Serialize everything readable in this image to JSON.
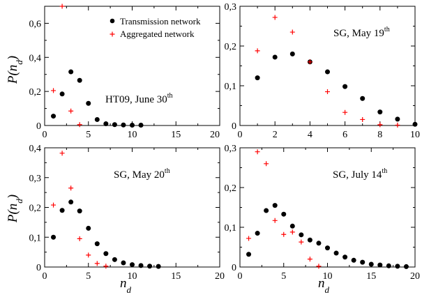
{
  "figure": {
    "ylabel_main": "P(n",
    "ylabel_sub": "d",
    "ylabel_close": ")",
    "xlabel_main": "n",
    "xlabel_sub": "d"
  },
  "legend": {
    "transmission": "Transmission network",
    "aggregated": "Aggregated network"
  },
  "colors": {
    "transmission": "#000000",
    "aggregated": "#ff0000"
  },
  "chart_data": [
    {
      "type": "scatter",
      "annotation": {
        "main": "HT09, June 30",
        "sup": "th"
      },
      "xlim": [
        0,
        20
      ],
      "ylim": [
        0,
        0.7
      ],
      "xticks": [
        0,
        5,
        10,
        15,
        20
      ],
      "yticks": [
        0,
        0.2,
        0.4,
        0.6
      ],
      "ytick_labels": [
        "0",
        "0,2",
        "0,4",
        "0,6"
      ],
      "series": [
        {
          "name": "Transmission network",
          "marker": "circle",
          "x": [
            1,
            2,
            3,
            4,
            5,
            6,
            7,
            8,
            9,
            10,
            11
          ],
          "y": [
            0.055,
            0.185,
            0.315,
            0.265,
            0.13,
            0.035,
            0.01,
            0.005,
            0.003,
            0.002,
            0.002
          ]
        },
        {
          "name": "Aggregated network",
          "marker": "plus",
          "x": [
            1,
            2,
            3,
            4
          ],
          "y": [
            0.205,
            0.7,
            0.085,
            0.005
          ]
        }
      ]
    },
    {
      "type": "scatter",
      "annotation": {
        "main": "SG, May 19",
        "sup": "th"
      },
      "xlim": [
        0,
        10
      ],
      "ylim": [
        0,
        0.3
      ],
      "xticks": [
        0,
        2,
        4,
        6,
        8,
        10
      ],
      "yticks": [
        0,
        0.1,
        0.2,
        0.3
      ],
      "ytick_labels": [
        "0",
        "0,1",
        "0,2",
        "0,3"
      ],
      "series": [
        {
          "name": "Transmission network",
          "marker": "circle",
          "x": [
            1,
            2,
            3,
            4,
            5,
            6,
            7,
            8,
            9,
            10
          ],
          "y": [
            0.12,
            0.172,
            0.18,
            0.16,
            0.135,
            0.098,
            0.068,
            0.034,
            0.016,
            0.003
          ]
        },
        {
          "name": "Aggregated network",
          "marker": "plus",
          "x": [
            1,
            2,
            3,
            4,
            5,
            6,
            7,
            8,
            9
          ],
          "y": [
            0.188,
            0.272,
            0.235,
            0.16,
            0.085,
            0.033,
            0.015,
            0.002,
            0.001
          ]
        }
      ]
    },
    {
      "type": "scatter",
      "annotation": {
        "main": "SG, May 20",
        "sup": "th"
      },
      "xlim": [
        0,
        20
      ],
      "ylim": [
        0,
        0.4
      ],
      "xticks": [
        0,
        5,
        10,
        15,
        20
      ],
      "yticks": [
        0,
        0.1,
        0.2,
        0.3,
        0.4
      ],
      "ytick_labels": [
        "0",
        "0,1",
        "0,2",
        "0,3",
        "0,4"
      ],
      "series": [
        {
          "name": "Transmission network",
          "marker": "circle",
          "x": [
            1,
            2,
            3,
            4,
            5,
            6,
            7,
            8,
            9,
            10,
            11,
            12,
            13
          ],
          "y": [
            0.1,
            0.19,
            0.218,
            0.188,
            0.13,
            0.078,
            0.045,
            0.025,
            0.014,
            0.008,
            0.005,
            0.003,
            0.002
          ]
        },
        {
          "name": "Aggregated network",
          "marker": "plus",
          "x": [
            1,
            2,
            3,
            4,
            5,
            6,
            7
          ],
          "y": [
            0.208,
            0.382,
            0.265,
            0.095,
            0.04,
            0.012,
            0.003
          ]
        }
      ]
    },
    {
      "type": "scatter",
      "annotation": {
        "main": "SG, July 14",
        "sup": "th"
      },
      "xlim": [
        0,
        20
      ],
      "ylim": [
        0,
        0.3
      ],
      "xticks": [
        0,
        5,
        10,
        15,
        20
      ],
      "yticks": [
        0,
        0.1,
        0.2,
        0.3
      ],
      "ytick_labels": [
        "0",
        "0,1",
        "0,2",
        "0,3"
      ],
      "series": [
        {
          "name": "Transmission network",
          "marker": "circle",
          "x": [
            1,
            2,
            3,
            4,
            5,
            6,
            7,
            8,
            9,
            10,
            11,
            12,
            13,
            14,
            15,
            16,
            17,
            18,
            19
          ],
          "y": [
            0.032,
            0.085,
            0.142,
            0.155,
            0.133,
            0.103,
            0.081,
            0.068,
            0.06,
            0.048,
            0.035,
            0.025,
            0.017,
            0.012,
            0.007,
            0.005,
            0.003,
            0.002,
            0.001
          ]
        },
        {
          "name": "Aggregated network",
          "marker": "plus",
          "x": [
            1,
            2,
            3,
            4,
            5,
            6,
            7,
            8,
            9
          ],
          "y": [
            0.072,
            0.29,
            0.26,
            0.117,
            0.082,
            0.088,
            0.063,
            0.02,
            0.002
          ]
        }
      ]
    }
  ]
}
